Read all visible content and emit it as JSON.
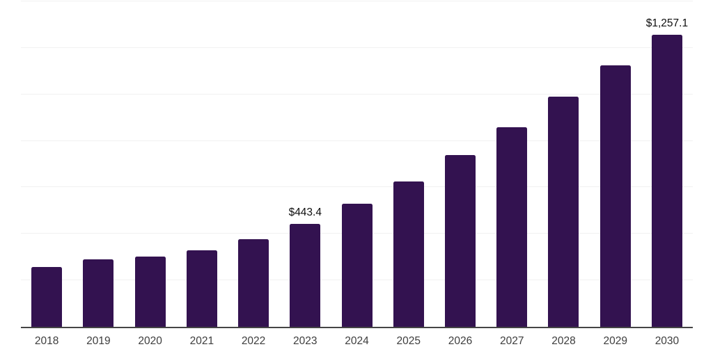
{
  "chart_data": {
    "type": "bar",
    "title": "",
    "xlabel": "",
    "ylabel": "",
    "categories": [
      "2018",
      "2019",
      "2020",
      "2021",
      "2022",
      "2023",
      "2024",
      "2025",
      "2026",
      "2027",
      "2028",
      "2029",
      "2030"
    ],
    "values": [
      256,
      291,
      303,
      330,
      377,
      443.4,
      530,
      626,
      740,
      860,
      991,
      1126,
      1257.1
    ],
    "value_labels": {
      "2023": "$443.4",
      "2030": "$1,257.1"
    },
    "ylim": [
      0,
      1400
    ],
    "gridline_step": 200,
    "grid": true,
    "legend": false,
    "y_tick_labels_shown": false,
    "bar_color": "#331250",
    "axis_line_color": "#454545",
    "gridline_color": "#f1f1f1",
    "x_tick_label_color": "#3d3d3d",
    "value_label_color": "#0e0e0e"
  }
}
